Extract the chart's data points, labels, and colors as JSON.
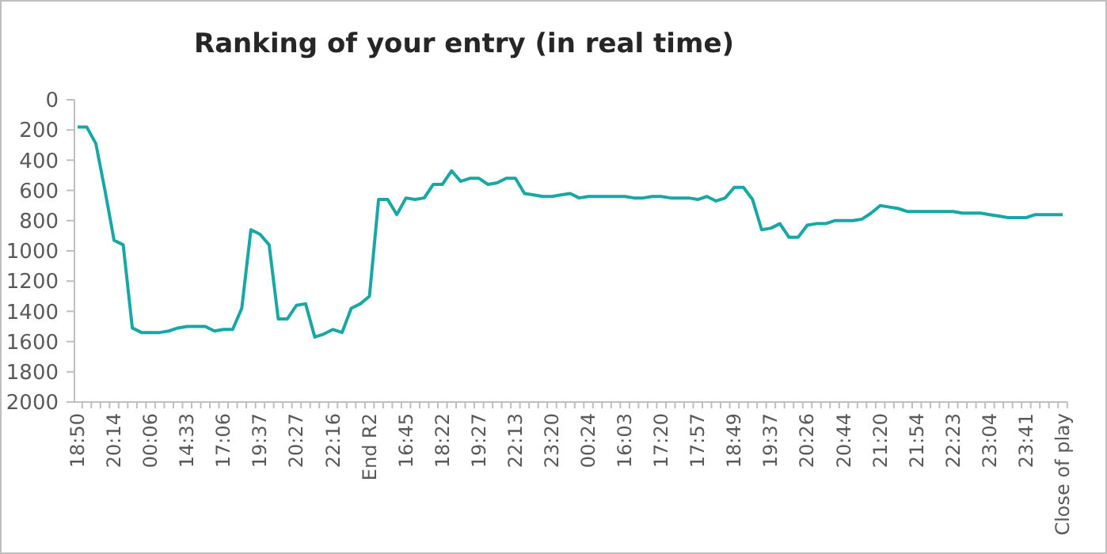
{
  "chart_data": {
    "type": "line",
    "title": "Ranking of your entry (in real time)",
    "categories": [
      "18:50",
      null,
      null,
      null,
      "20:14",
      null,
      null,
      null,
      "00:06",
      null,
      null,
      null,
      "14:33",
      null,
      null,
      null,
      "17:06",
      null,
      null,
      null,
      "19:37",
      null,
      null,
      null,
      "20:27",
      null,
      null,
      null,
      "22:16",
      null,
      null,
      null,
      "End R2",
      null,
      null,
      null,
      "16:45",
      null,
      null,
      null,
      "18:22",
      null,
      null,
      null,
      "19:27",
      null,
      null,
      null,
      "22:13",
      null,
      null,
      null,
      "23:20",
      null,
      null,
      null,
      "00:24",
      null,
      null,
      null,
      "16:03",
      null,
      null,
      null,
      "17:20",
      null,
      null,
      null,
      "17:57",
      null,
      null,
      null,
      "18:49",
      null,
      null,
      null,
      "19:37",
      null,
      null,
      null,
      "20:26",
      null,
      null,
      null,
      "20:44",
      null,
      null,
      null,
      "21:20",
      null,
      null,
      null,
      "21:54",
      null,
      null,
      null,
      "22:23",
      null,
      null,
      null,
      "23:04",
      null,
      null,
      null,
      "23:41",
      null,
      null,
      null,
      "Close of play"
    ],
    "series": [
      {
        "color": "#17a8a6",
        "values": [
          180,
          180,
          290,
          600,
          930,
          960,
          1510,
          1540,
          1540,
          1540,
          1530,
          1510,
          1500,
          1500,
          1500,
          1530,
          1520,
          1520,
          1380,
          860,
          890,
          960,
          1450,
          1450,
          1360,
          1350,
          1570,
          1550,
          1520,
          1540,
          1380,
          1350,
          1300,
          660,
          660,
          760,
          650,
          660,
          650,
          560,
          560,
          470,
          540,
          520,
          520,
          560,
          550,
          520,
          520,
          620,
          630,
          640,
          640,
          630,
          620,
          650,
          640,
          640,
          640,
          640,
          640,
          650,
          650,
          640,
          640,
          650,
          650,
          650,
          660,
          640,
          670,
          650,
          580,
          580,
          660,
          860,
          850,
          820,
          910,
          910,
          830,
          820,
          820,
          800,
          800,
          800,
          790,
          750,
          700,
          710,
          720,
          740,
          740,
          740,
          740,
          740,
          740,
          750,
          750,
          750,
          760,
          770,
          780,
          780,
          780,
          760,
          760,
          760,
          760
        ]
      }
    ],
    "ylim": [
      2000,
      0
    ],
    "yticks": [
      0,
      200,
      400,
      600,
      800,
      1000,
      1200,
      1400,
      1600,
      1800,
      2000
    ],
    "marker": "none",
    "line_style": "solid"
  }
}
